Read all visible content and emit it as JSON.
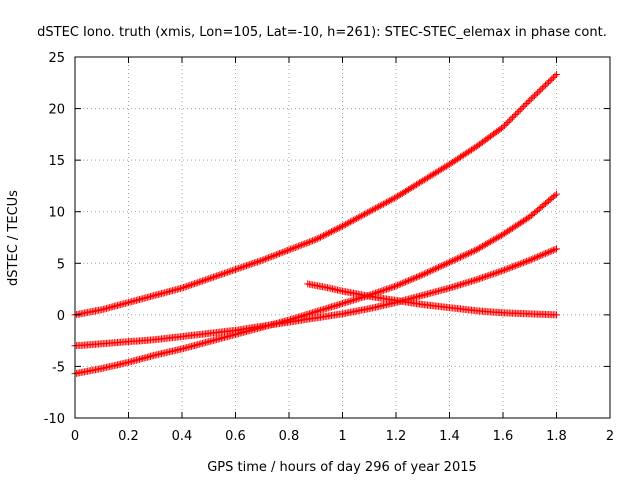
{
  "chart_data": {
    "type": "scatter",
    "title": "dSTEC Iono. truth (xmis, Lon=105, Lat=-10, h=261): STEC-STEC_elemax in phase cont.",
    "xlabel": "GPS time / hours of day 296 of year 2015",
    "ylabel": "dSTEC  / TECUs",
    "xlim": [
      0,
      2
    ],
    "ylim": [
      -10,
      25
    ],
    "xticks": [
      "0",
      "0.2",
      "0.4",
      "0.6",
      "0.8",
      "1",
      "1.2",
      "1.4",
      "1.6",
      "1.8",
      "2"
    ],
    "xtick_values": [
      0,
      0.2,
      0.4,
      0.6,
      0.8,
      1.0,
      1.2,
      1.4,
      1.6,
      1.8,
      2.0
    ],
    "yticks": [
      "-10",
      "-5",
      "0",
      "5",
      "10",
      "15",
      "20",
      "25"
    ],
    "ytick_values": [
      -10,
      -5,
      0,
      5,
      10,
      15,
      20,
      25
    ],
    "grid": true,
    "marker": "plus",
    "color": "#ff0000",
    "series": [
      {
        "x": [
          0.0,
          0.1,
          0.2,
          0.3,
          0.4,
          0.5,
          0.6,
          0.7,
          0.8,
          0.9,
          1.0,
          1.1,
          1.2,
          1.3,
          1.4,
          1.5,
          1.6,
          1.7,
          1.8
        ],
        "y": [
          0.0,
          0.5,
          1.2,
          1.9,
          2.6,
          3.5,
          4.4,
          5.3,
          6.3,
          7.3,
          8.6,
          10.0,
          11.4,
          13.0,
          14.6,
          16.3,
          18.2,
          20.8,
          23.3
        ]
      },
      {
        "x": [
          0.0,
          0.1,
          0.2,
          0.3,
          0.4,
          0.5,
          0.6,
          0.7,
          0.8,
          0.9,
          1.0,
          1.1,
          1.2,
          1.3,
          1.4,
          1.5,
          1.6,
          1.7,
          1.8
        ],
        "y": [
          -5.7,
          -5.2,
          -4.6,
          -3.9,
          -3.3,
          -2.6,
          -1.9,
          -1.2,
          -0.5,
          0.3,
          1.1,
          1.9,
          2.8,
          3.9,
          5.1,
          6.3,
          7.8,
          9.5,
          11.7
        ]
      },
      {
        "x": [
          0.0,
          0.1,
          0.2,
          0.3,
          0.4,
          0.5,
          0.6,
          0.7,
          0.8,
          0.9,
          1.0,
          1.1,
          1.2,
          1.3,
          1.4,
          1.5,
          1.6,
          1.7,
          1.8
        ],
        "y": [
          -3.0,
          -2.8,
          -2.6,
          -2.4,
          -2.1,
          -1.8,
          -1.5,
          -1.1,
          -0.7,
          -0.3,
          0.1,
          0.6,
          1.2,
          1.9,
          2.6,
          3.4,
          4.3,
          5.3,
          6.4
        ]
      },
      {
        "x": [
          0.87,
          0.95,
          1.0,
          1.1,
          1.2,
          1.3,
          1.4,
          1.5,
          1.6,
          1.7,
          1.8
        ],
        "y": [
          3.0,
          2.6,
          2.3,
          1.8,
          1.4,
          1.0,
          0.7,
          0.4,
          0.2,
          0.1,
          0.0
        ]
      }
    ]
  }
}
